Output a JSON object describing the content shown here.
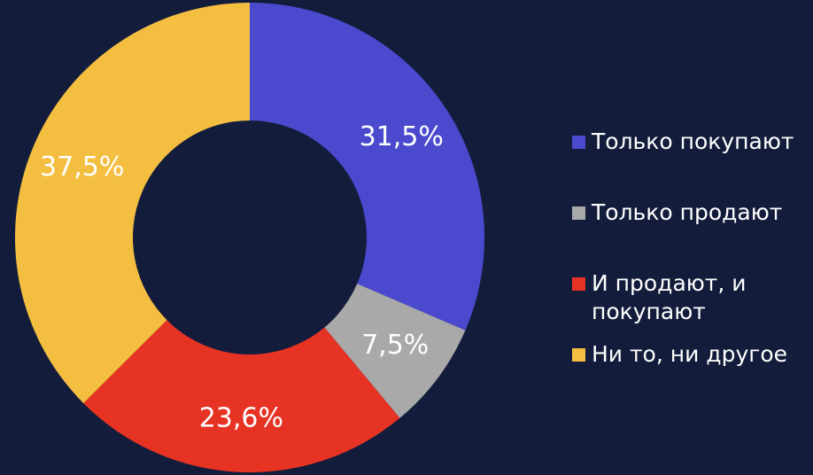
{
  "chart_data": {
    "type": "donut",
    "categories": [
      "Только покупают",
      "Только продают",
      "И продают, и покупают",
      "Ни то, ни другое"
    ],
    "values": [
      31.5,
      7.5,
      23.6,
      37.5
    ],
    "value_labels": [
      "31,5%",
      "7,5%",
      "23,6%",
      "37,5%"
    ],
    "colors": [
      "#4b4acf",
      "#a9a9a9",
      "#e63324",
      "#f4be41"
    ]
  }
}
